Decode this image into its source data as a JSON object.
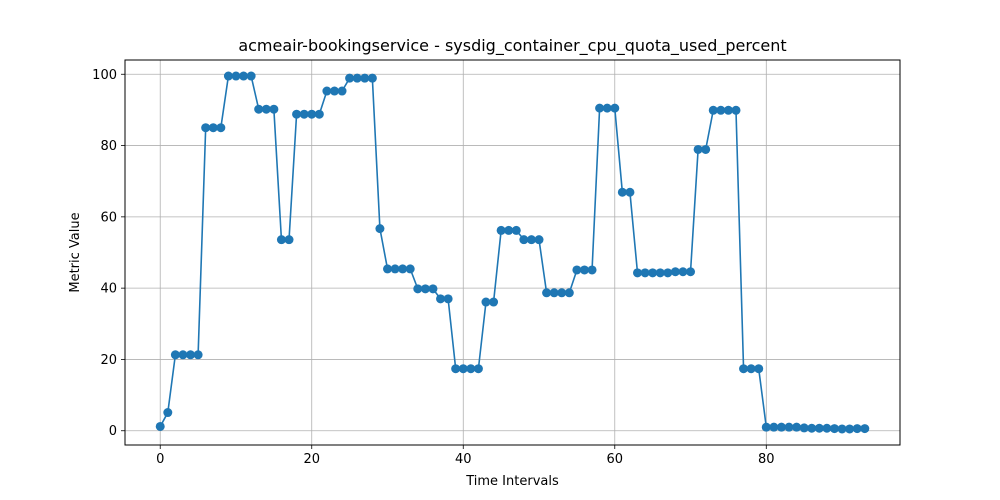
{
  "chart_data": {
    "type": "line",
    "title": "acmeair-bookingservice - sysdig_container_cpu_quota_used_percent",
    "xlabel": "Time Intervals",
    "ylabel": "Metric Value",
    "xlim": [
      -4.65,
      97.65
    ],
    "ylim": [
      -4.0,
      104.0
    ],
    "xticks": [
      0,
      20,
      40,
      60,
      80
    ],
    "yticks": [
      0,
      20,
      40,
      60,
      80,
      100
    ],
    "grid": true,
    "marker": "circle",
    "color": "#1f77b4",
    "x": [
      0,
      1,
      2,
      3,
      4,
      5,
      6,
      7,
      8,
      9,
      10,
      11,
      12,
      13,
      14,
      15,
      16,
      17,
      18,
      19,
      20,
      21,
      22,
      23,
      24,
      25,
      26,
      27,
      28,
      29,
      30,
      31,
      32,
      33,
      34,
      35,
      36,
      37,
      38,
      39,
      40,
      41,
      42,
      43,
      44,
      45,
      46,
      47,
      48,
      49,
      50,
      51,
      52,
      53,
      54,
      55,
      56,
      57,
      58,
      59,
      60,
      61,
      62,
      63,
      64,
      65,
      66,
      67,
      68,
      69,
      70,
      71,
      72,
      73,
      74,
      75,
      76,
      77,
      78,
      79,
      80,
      81,
      82,
      83,
      84,
      85,
      86,
      87,
      88,
      89,
      90,
      91,
      92,
      93
    ],
    "values": [
      1.2,
      5.1,
      21.3,
      21.3,
      21.3,
      21.3,
      85.0,
      85.0,
      85.0,
      99.5,
      99.5,
      99.5,
      99.5,
      90.2,
      90.2,
      90.2,
      53.6,
      53.6,
      88.8,
      88.8,
      88.8,
      88.8,
      95.3,
      95.3,
      95.3,
      98.9,
      98.9,
      98.9,
      98.9,
      56.7,
      45.4,
      45.4,
      45.4,
      45.4,
      39.8,
      39.8,
      39.8,
      37.0,
      37.0,
      17.4,
      17.4,
      17.4,
      17.4,
      36.1,
      36.1,
      56.2,
      56.2,
      56.2,
      53.6,
      53.6,
      53.6,
      38.7,
      38.7,
      38.7,
      38.7,
      45.1,
      45.1,
      45.1,
      90.5,
      90.5,
      90.5,
      66.9,
      66.9,
      44.3,
      44.3,
      44.3,
      44.3,
      44.3,
      44.6,
      44.6,
      44.6,
      78.9,
      78.9,
      89.9,
      89.9,
      89.9,
      89.9,
      17.4,
      17.4,
      17.4,
      1.0,
      1.0,
      1.0,
      1.0,
      1.0,
      0.8,
      0.7,
      0.7,
      0.7,
      0.6,
      0.5,
      0.5,
      0.6,
      0.6
    ]
  }
}
